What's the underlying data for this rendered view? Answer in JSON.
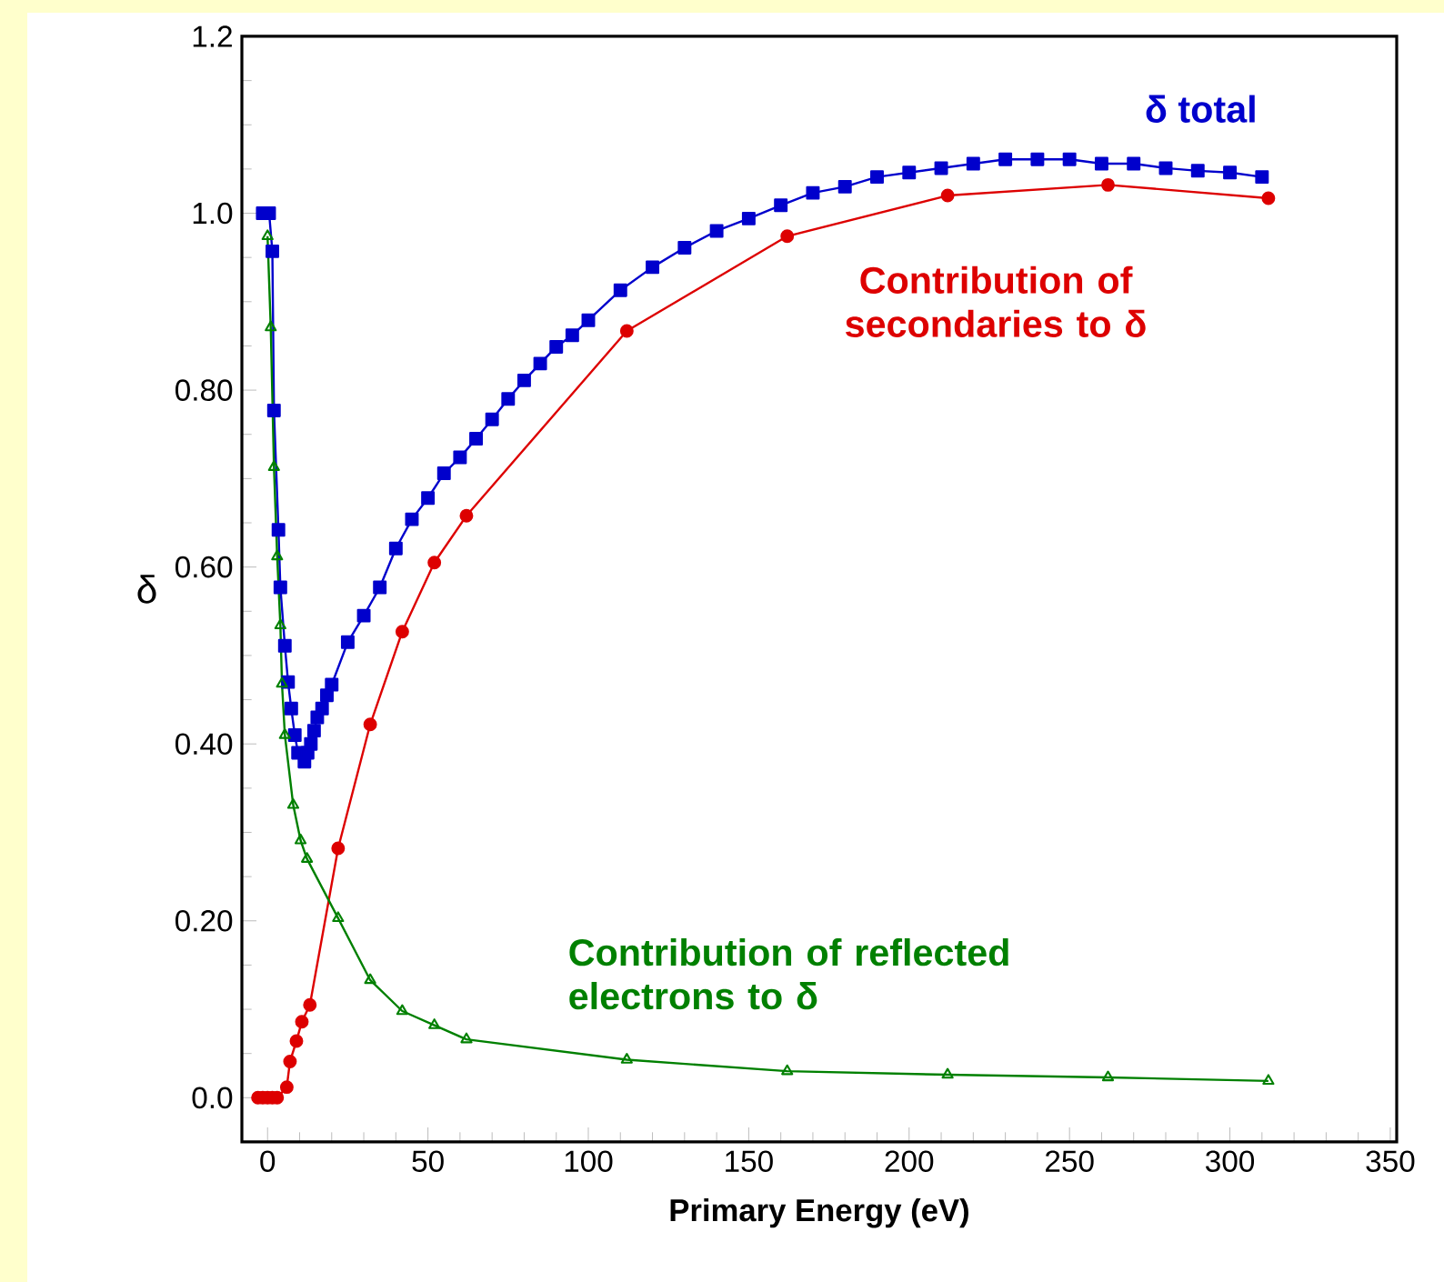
{
  "chart_data": {
    "type": "line",
    "xlabel": "Primary Energy (eV)",
    "ylabel": "δ",
    "xlim": [
      -8,
      352
    ],
    "ylim": [
      -0.05,
      1.2
    ],
    "xticks": [
      0,
      50,
      100,
      150,
      200,
      250,
      300,
      350
    ],
    "yticks": [
      {
        "value": 0,
        "label": "0.0"
      },
      {
        "value": 0.2,
        "label": "0.20"
      },
      {
        "value": 0.4,
        "label": "0.40"
      },
      {
        "value": 0.6,
        "label": "0.60"
      },
      {
        "value": 0.8,
        "label": "0.80"
      },
      {
        "value": 1.0,
        "label": "1.0"
      },
      {
        "value": 1.2,
        "label": "1.2"
      }
    ],
    "grid": false,
    "legend": false,
    "line_style": "solid",
    "series": [
      {
        "name": "δ total",
        "color": "#0000cc",
        "marker": "square",
        "x": [
          -1.5,
          0.5,
          1.5,
          2,
          3.4,
          4,
          5.4,
          6.4,
          7.4,
          8.5,
          9.5,
          11.5,
          12.5,
          13.5,
          14.5,
          15.5,
          17,
          18.5,
          20,
          25,
          30,
          35,
          40,
          45,
          50,
          55,
          60,
          65,
          70,
          75,
          80,
          85,
          90,
          95,
          100,
          110,
          120,
          130,
          140,
          150,
          160,
          170,
          180,
          190,
          200,
          210,
          220,
          230,
          240,
          250,
          260,
          270,
          280,
          290,
          300,
          310
        ],
        "values": [
          1.0,
          1.0,
          0.957,
          0.777,
          0.642,
          0.577,
          0.511,
          0.47,
          0.44,
          0.41,
          0.39,
          0.38,
          0.39,
          0.4,
          0.415,
          0.43,
          0.44,
          0.455,
          0.467,
          0.515,
          0.545,
          0.577,
          0.621,
          0.654,
          0.678,
          0.706,
          0.724,
          0.745,
          0.767,
          0.79,
          0.811,
          0.83,
          0.849,
          0.862,
          0.879,
          0.913,
          0.939,
          0.961,
          0.98,
          0.994,
          1.009,
          1.023,
          1.03,
          1.041,
          1.046,
          1.051,
          1.056,
          1.061,
          1.061,
          1.061,
          1.056,
          1.056,
          1.051,
          1.048,
          1.046,
          1.041
        ]
      },
      {
        "name": "Contribution of secondaries to δ",
        "color": "#dd0000",
        "marker": "circle",
        "x": [
          -3,
          -1.5,
          0,
          1.5,
          3,
          6,
          7,
          9,
          10.7,
          13.2,
          22,
          32,
          42,
          52,
          62,
          112,
          162,
          212,
          262,
          312
        ],
        "values": [
          0,
          0,
          0,
          0,
          0,
          0.012,
          0.041,
          0.064,
          0.086,
          0.105,
          0.282,
          0.422,
          0.527,
          0.605,
          0.658,
          0.867,
          0.974,
          1.02,
          1.032,
          1.017
        ]
      },
      {
        "name": "Contribution of reflected electrons to δ",
        "color": "#008000",
        "marker": "triangle",
        "x": [
          0,
          1,
          2,
          3,
          4,
          4.5,
          5.4,
          8,
          10.3,
          12.3,
          22,
          32,
          42,
          52,
          62,
          112,
          162,
          212,
          262,
          312
        ],
        "values": [
          0.974,
          0.871,
          0.713,
          0.612,
          0.534,
          0.468,
          0.41,
          0.331,
          0.291,
          0.27,
          0.203,
          0.133,
          0.098,
          0.082,
          0.066,
          0.043,
          0.03,
          0.026,
          0.023,
          0.019
        ]
      }
    ]
  }
}
